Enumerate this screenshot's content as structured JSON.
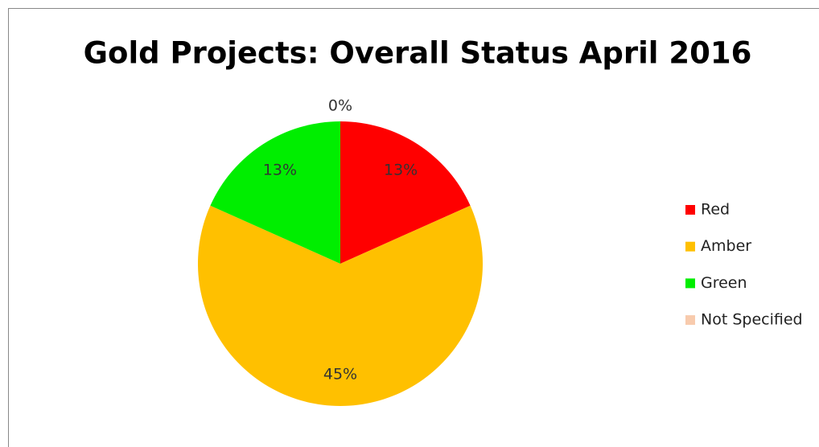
{
  "chart_data": {
    "type": "pie",
    "title": "Gold Projects: Overall Status April 2016",
    "categories": [
      "Red",
      "Amber",
      "Green",
      "Not Specified"
    ],
    "values": [
      13,
      45,
      13,
      0
    ],
    "value_labels": [
      "13%",
      "45%",
      "13%",
      "0%"
    ],
    "colors": [
      "#ff0000",
      "#ffc000",
      "#00ee00",
      "#f8cbad"
    ],
    "legend": "right"
  }
}
